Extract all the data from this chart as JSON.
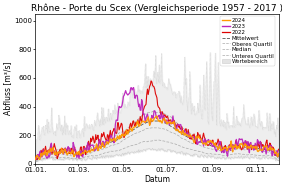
{
  "title": "Rhône - Porte du Scex (Vergleichsperiode 1957 - 2017 )",
  "xlabel": "Datum",
  "ylabel": "Abfluss [m³/s]",
  "xlim_days": [
    1,
    335
  ],
  "ylim": [
    0,
    1050
  ],
  "yticks": [
    0,
    200,
    400,
    600,
    800,
    1000
  ],
  "xtick_labels": [
    "01.01.",
    "01.03.",
    "01.05.",
    "01.07.",
    "01.09.",
    "01.11."
  ],
  "xtick_days": [
    1,
    60,
    121,
    182,
    244,
    305
  ],
  "bg_color": "#ffffff",
  "title_fontsize": 6.5,
  "axis_fontsize": 5.5,
  "tick_fontsize": 5,
  "legend_fontsize": 4
}
